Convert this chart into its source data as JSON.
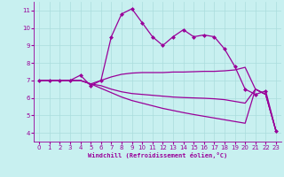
{
  "xlabel": "Windchill (Refroidissement éolien,°C)",
  "x_values": [
    0,
    1,
    2,
    3,
    4,
    5,
    6,
    7,
    8,
    9,
    10,
    11,
    12,
    13,
    14,
    15,
    16,
    17,
    18,
    19,
    20,
    21,
    22,
    23
  ],
  "line1": [
    7.0,
    7.0,
    7.0,
    7.0,
    7.3,
    6.7,
    7.0,
    9.5,
    10.8,
    11.1,
    10.3,
    9.5,
    9.0,
    9.5,
    9.9,
    9.5,
    9.6,
    9.5,
    8.8,
    7.8,
    6.5,
    6.2,
    6.4,
    4.1
  ],
  "line2": [
    7.0,
    7.0,
    7.0,
    7.0,
    7.0,
    6.8,
    7.0,
    7.2,
    7.35,
    7.42,
    7.45,
    7.45,
    7.45,
    7.48,
    7.48,
    7.5,
    7.52,
    7.52,
    7.55,
    7.6,
    7.75,
    6.5,
    6.2,
    4.1
  ],
  "line3": [
    7.0,
    7.0,
    7.0,
    7.0,
    7.0,
    6.8,
    6.7,
    6.5,
    6.35,
    6.25,
    6.2,
    6.15,
    6.1,
    6.05,
    6.02,
    6.0,
    5.98,
    5.95,
    5.9,
    5.8,
    5.7,
    6.5,
    6.2,
    4.1
  ],
  "line4": [
    7.0,
    7.0,
    7.0,
    7.0,
    7.0,
    6.8,
    6.55,
    6.3,
    6.05,
    5.85,
    5.7,
    5.55,
    5.4,
    5.28,
    5.16,
    5.05,
    4.95,
    4.85,
    4.75,
    4.65,
    4.55,
    6.5,
    6.2,
    4.1
  ],
  "line_color": "#990099",
  "bg_color": "#c8f0f0",
  "grid_color": "#aadddd",
  "ylim": [
    3.5,
    11.5
  ],
  "xlim": [
    -0.5,
    23.5
  ],
  "yticks": [
    4,
    5,
    6,
    7,
    8,
    9,
    10,
    11
  ],
  "xticks": [
    0,
    1,
    2,
    3,
    4,
    5,
    6,
    7,
    8,
    9,
    10,
    11,
    12,
    13,
    14,
    15,
    16,
    17,
    18,
    19,
    20,
    21,
    22,
    23
  ]
}
